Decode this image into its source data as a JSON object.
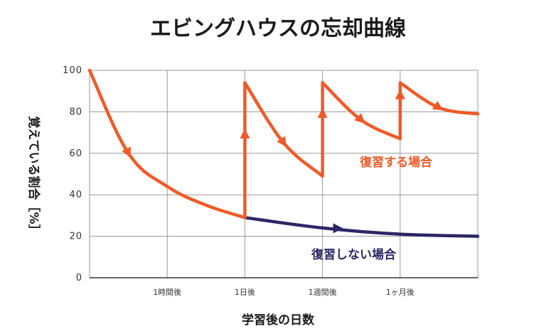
{
  "chart_data": {
    "type": "line",
    "title": "エビングハウスの忘却曲線",
    "xlabel": "学習後の日数",
    "ylabel": "覚えている割合［%］",
    "ylim": [
      0,
      100
    ],
    "yticks": [
      "100",
      "80",
      "60",
      "40",
      "20",
      "0"
    ],
    "xticks": [
      "1時間後",
      "1日後",
      "1週間後",
      "1ヶ月後"
    ],
    "grid": true,
    "colors": {
      "review": "#f05a28",
      "noreview": "#2b2766",
      "grid": "#9a9a9a"
    },
    "series": [
      {
        "name": "復習する場合",
        "segments": [
          {
            "x": [
              0,
              0.5,
              1.0,
              1.5,
              2.0
            ],
            "y": [
              100,
              60,
              44,
              35,
              29
            ]
          },
          {
            "x": [
              2.0,
              2.5,
              3.0
            ],
            "y": [
              94,
              65,
              49
            ]
          },
          {
            "x": [
              3.0,
              3.5,
              4.0
            ],
            "y": [
              94,
              76,
              67
            ]
          },
          {
            "x": [
              4.0,
              4.5,
              5.0
            ],
            "y": [
              94,
              82,
              79
            ]
          }
        ]
      },
      {
        "name": "復習しない場合",
        "segments": [
          {
            "x": [
              2.0,
              3.0,
              4.0,
              5.0
            ],
            "y": [
              29,
              24,
              21,
              20
            ]
          }
        ]
      }
    ]
  }
}
